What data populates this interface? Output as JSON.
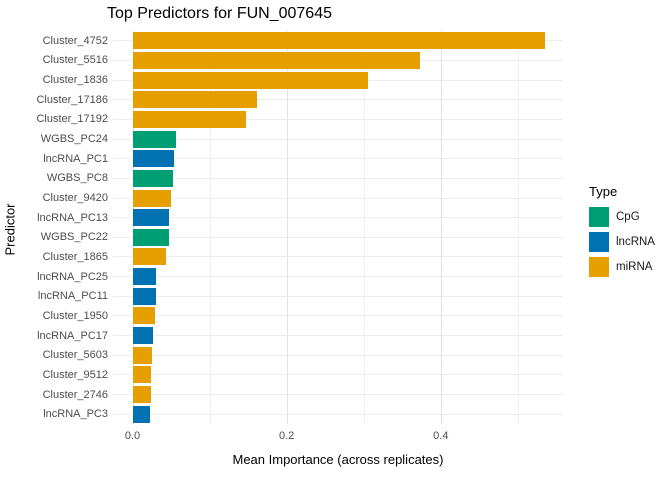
{
  "chart_data": {
    "type": "bar",
    "orientation": "horizontal",
    "title": "Top Predictors for FUN_007645",
    "xlabel": "Mean Importance (across replicates)",
    "ylabel": "Predictor",
    "xlim": [
      -0.0253,
      0.5585
    ],
    "grid": true,
    "x_major_ticks": [
      {
        "value": 0.0,
        "label": "0.0"
      },
      {
        "value": 0.2,
        "label": "0.2"
      },
      {
        "value": 0.4,
        "label": "0.4"
      }
    ],
    "x_minor_ticks": [
      0.1,
      0.3,
      0.5
    ],
    "legend_position": "right",
    "legend": {
      "title": "Type",
      "entries": [
        {
          "label": "CpG",
          "color": "#009E73"
        },
        {
          "label": "lncRNA",
          "color": "#0072B2"
        },
        {
          "label": "miRNA",
          "color": "#E69F00"
        }
      ]
    },
    "bars": [
      {
        "label": "Cluster_4752",
        "type": "miRNA",
        "value": 0.535
      },
      {
        "label": "Cluster_5516",
        "type": "miRNA",
        "value": 0.373
      },
      {
        "label": "Cluster_1836",
        "type": "miRNA",
        "value": 0.306
      },
      {
        "label": "Cluster_17186",
        "type": "miRNA",
        "value": 0.161
      },
      {
        "label": "Cluster_17192",
        "type": "miRNA",
        "value": 0.147
      },
      {
        "label": "WGBS_PC24",
        "type": "CpG",
        "value": 0.056
      },
      {
        "label": "lncRNA_PC1",
        "type": "lncRNA",
        "value": 0.054
      },
      {
        "label": "WGBS_PC8",
        "type": "CpG",
        "value": 0.052
      },
      {
        "label": "Cluster_9420",
        "type": "miRNA",
        "value": 0.05
      },
      {
        "label": "lncRNA_PC13",
        "type": "lncRNA",
        "value": 0.048
      },
      {
        "label": "WGBS_PC22",
        "type": "CpG",
        "value": 0.047
      },
      {
        "label": "Cluster_1865",
        "type": "miRNA",
        "value": 0.043
      },
      {
        "label": "lncRNA_PC25",
        "type": "lncRNA",
        "value": 0.031
      },
      {
        "label": "lncRNA_PC11",
        "type": "lncRNA",
        "value": 0.031
      },
      {
        "label": "Cluster_1950",
        "type": "miRNA",
        "value": 0.029
      },
      {
        "label": "lncRNA_PC17",
        "type": "lncRNA",
        "value": 0.027
      },
      {
        "label": "Cluster_5603",
        "type": "miRNA",
        "value": 0.025
      },
      {
        "label": "Cluster_9512",
        "type": "miRNA",
        "value": 0.024
      },
      {
        "label": "Cluster_2746",
        "type": "miRNA",
        "value": 0.024
      },
      {
        "label": "lncRNA_PC3",
        "type": "lncRNA",
        "value": 0.023
      }
    ]
  }
}
